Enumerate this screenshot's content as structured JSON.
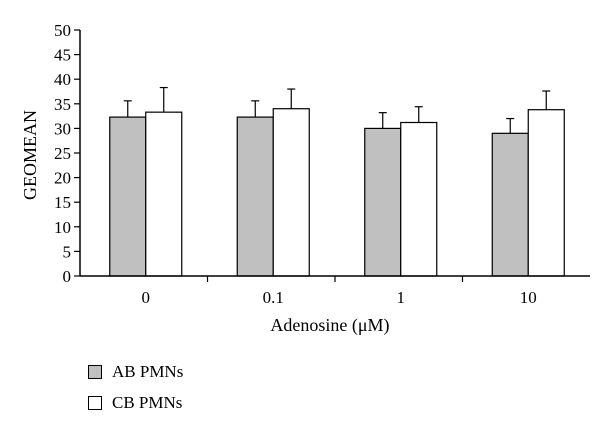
{
  "chart_data": {
    "type": "bar",
    "categories": [
      "0",
      "0.1",
      "1",
      "10"
    ],
    "series": [
      {
        "name": "AB PMNs",
        "values": [
          32.3,
          32.3,
          30.0,
          29.0
        ],
        "errors": [
          3.3,
          3.3,
          3.2,
          3.0
        ],
        "color": "#c0c0c0"
      },
      {
        "name": "CB PMNs",
        "values": [
          33.3,
          34.0,
          31.2,
          33.8
        ],
        "errors": [
          5.0,
          4.0,
          3.2,
          3.8
        ],
        "color": "#ffffff"
      }
    ],
    "yticks": [
      "0",
      "5",
      "10",
      "15",
      "20",
      "25",
      "30",
      "35",
      "40",
      "45",
      "50"
    ],
    "ylim": [
      0,
      50
    ],
    "ylabel": "GEOMEAN",
    "xlabel": "Adenosine (μM)",
    "grid": false,
    "legend_position": "bottom-left"
  }
}
